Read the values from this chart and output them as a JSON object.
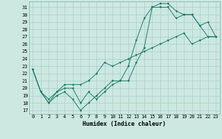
{
  "xlabel": "Humidex (Indice chaleur)",
  "ylabel": "",
  "bg_color": "#cce8e0",
  "grid_color": "#aacccc",
  "line_color": "#1a7a6a",
  "xlim": [
    -0.5,
    23.5
  ],
  "ylim": [
    16.5,
    31.8
  ],
  "yticks": [
    17,
    18,
    19,
    20,
    21,
    22,
    23,
    24,
    25,
    26,
    27,
    28,
    29,
    30,
    31
  ],
  "xticks": [
    0,
    1,
    2,
    3,
    4,
    5,
    6,
    7,
    8,
    9,
    10,
    11,
    12,
    13,
    14,
    15,
    16,
    17,
    18,
    19,
    20,
    21,
    22,
    23
  ],
  "line1_x": [
    0,
    1,
    2,
    3,
    4,
    5,
    6,
    7,
    8,
    9,
    10,
    11,
    12,
    13,
    14,
    15,
    16,
    17,
    18,
    19,
    20,
    21,
    22,
    23
  ],
  "line1_y": [
    22.5,
    19.5,
    18.0,
    19.0,
    19.5,
    18.5,
    17.0,
    18.0,
    19.0,
    20.0,
    21.0,
    21.0,
    23.0,
    26.5,
    29.5,
    31.0,
    31.0,
    31.0,
    29.5,
    30.0,
    30.0,
    28.5,
    27.0,
    27.0
  ],
  "line2_x": [
    0,
    1,
    2,
    3,
    4,
    5,
    6,
    7,
    8,
    9,
    10,
    11,
    12,
    13,
    14,
    15,
    16,
    17,
    18,
    19,
    20,
    21,
    22,
    23
  ],
  "line2_y": [
    22.5,
    19.5,
    18.0,
    19.5,
    20.0,
    20.0,
    18.0,
    19.5,
    18.5,
    19.5,
    20.5,
    21.0,
    21.0,
    23.5,
    25.5,
    31.0,
    31.5,
    31.5,
    30.5,
    30.0,
    30.0,
    28.5,
    29.0,
    27.0
  ],
  "line3_x": [
    0,
    1,
    2,
    3,
    4,
    5,
    6,
    7,
    8,
    9,
    10,
    11,
    12,
    13,
    14,
    15,
    16,
    17,
    18,
    19,
    20,
    21,
    22,
    23
  ],
  "line3_y": [
    22.5,
    19.5,
    18.5,
    19.5,
    20.5,
    20.5,
    20.5,
    21.0,
    22.0,
    23.5,
    23.0,
    23.5,
    24.0,
    24.5,
    25.0,
    25.5,
    26.0,
    26.5,
    27.0,
    27.5,
    26.0,
    26.5,
    27.0,
    27.0
  ],
  "tick_fontsize": 5,
  "xlabel_fontsize": 6
}
